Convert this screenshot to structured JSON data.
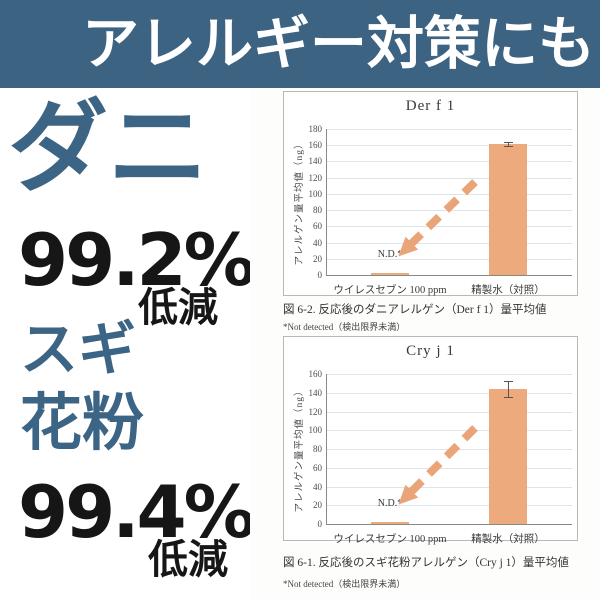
{
  "banner": {
    "text": "アレルギー対策にも",
    "bg_color": "#3d6383",
    "text_color": "#ffffff"
  },
  "left_panel": {
    "accent_color": "#3c6484",
    "item1_name": "ダニ",
    "item1_value": "99.2%",
    "item1_suffix": "低減",
    "item2_name_line1": "スギ",
    "item2_name_line2": "花粉",
    "item2_value": "99.4%",
    "item2_suffix": "低減"
  },
  "chart_data": [
    {
      "type": "bar",
      "title": "Der f 1",
      "categories": [
        "ウイレスセブン 100 ppm",
        "精製水（対照）"
      ],
      "values": [
        1,
        162
      ],
      "errors": [
        0,
        2
      ],
      "bar_labels": [
        "N.D.*",
        ""
      ],
      "ylabel": "アレルゲン量平均値（ng）",
      "ylim": [
        0,
        180
      ],
      "ytick_step": 20,
      "grid": true,
      "legend": "none",
      "bar_color": "#edaa7c",
      "arrow_color": "#e9a477",
      "caption": "図 6-2. 反応後のダニアレルゲン（Der f 1）量平均値",
      "footnote": "*Not detected（検出限界未満）"
    },
    {
      "type": "bar",
      "title": "Cry j 1",
      "categories": [
        "ウイレスセブン 100 ppm",
        "精製水（対照）"
      ],
      "values": [
        1,
        144
      ],
      "errors": [
        0,
        8
      ],
      "bar_labels": [
        "N.D.*",
        ""
      ],
      "ylabel": "アレルゲン量平均値（ng）",
      "ylim": [
        0,
        160
      ],
      "ytick_step": 20,
      "grid": true,
      "legend": "none",
      "bar_color": "#edaa7c",
      "arrow_color": "#e9a477",
      "caption": "図 6-1. 反応後のスギ花粉アレルゲン（Cry j 1）量平均値",
      "footnote": "*Not detected（検出限界未満）"
    }
  ]
}
